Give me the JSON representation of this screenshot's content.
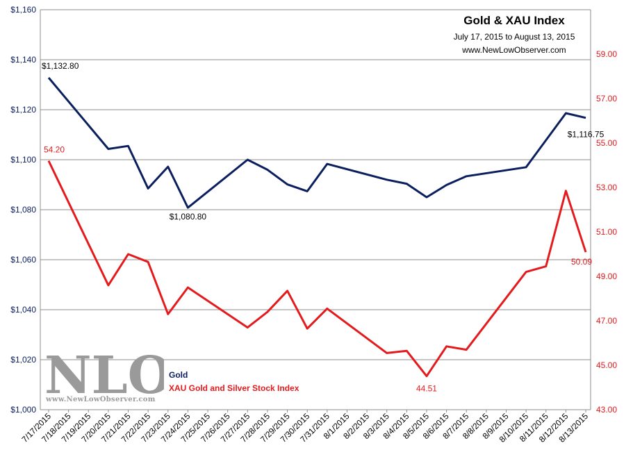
{
  "chart_data": {
    "type": "line",
    "title": "Gold  & XAU Index",
    "subtitle": "July 17, 2015  to August 13, 2015",
    "website": "www.NewLowObserver.com",
    "logo_text": "NLO",
    "logo_url": "www.NewLowObserver.com",
    "categories": [
      "7/17/2015",
      "7/18/2015",
      "7/19/2015",
      "7/20/2015",
      "7/21/2015",
      "7/22/2015",
      "7/23/2015",
      "7/24/2015",
      "7/25/2015",
      "7/26/2015",
      "7/27/2015",
      "7/28/2015",
      "7/29/2015",
      "7/30/2015",
      "7/31/2015",
      "8/1/2015",
      "8/2/2015",
      "8/3/2015",
      "8/4/2015",
      "8/5/2015",
      "8/6/2015",
      "8/7/2015",
      "8/8/2015",
      "8/9/2015",
      "8/10/2015",
      "8/11/2015",
      "8/12/2015",
      "8/13/2015"
    ],
    "left_axis": {
      "ylim": [
        1000,
        1160
      ],
      "ticks": [
        "$1,000",
        "$1,020",
        "$1,040",
        "$1,060",
        "$1,080",
        "$1,100",
        "$1,120",
        "$1,140",
        "$1,160"
      ]
    },
    "right_axis": {
      "ylim": [
        43,
        61
      ],
      "ticks": [
        "43.00",
        "45.00",
        "47.00",
        "49.00",
        "51.00",
        "53.00",
        "55.00",
        "57.00",
        "59.00"
      ]
    },
    "grid": true,
    "series": [
      {
        "name": "Gold",
        "axis": "left",
        "color": "#0b1f5e",
        "points": [
          [
            0,
            1132.8
          ],
          [
            3,
            1104.3
          ],
          [
            4,
            1105.5
          ],
          [
            5,
            1088.5
          ],
          [
            6,
            1097.2
          ],
          [
            7,
            1080.8
          ],
          [
            10,
            1100.0
          ],
          [
            11,
            1096.0
          ],
          [
            12,
            1090.1
          ],
          [
            13,
            1087.4
          ],
          [
            14,
            1098.3
          ],
          [
            17,
            1092.0
          ],
          [
            18,
            1090.4
          ],
          [
            19,
            1085.0
          ],
          [
            20,
            1089.9
          ],
          [
            21,
            1093.4
          ],
          [
            24,
            1097.0
          ],
          [
            26,
            1118.6
          ],
          [
            27,
            1116.75
          ]
        ],
        "labels": [
          {
            "index": 0,
            "text": "$1,132.80"
          },
          {
            "index": 7,
            "text": "$1,080.80"
          },
          {
            "index": 27,
            "text": "$1,116.75"
          }
        ]
      },
      {
        "name": "XAU Gold and Silver Stock Index",
        "axis": "right",
        "color": "#e41a1c",
        "points": [
          [
            0,
            54.2
          ],
          [
            3,
            48.6
          ],
          [
            4,
            50.0
          ],
          [
            5,
            49.65
          ],
          [
            6,
            47.3
          ],
          [
            7,
            48.5
          ],
          [
            10,
            46.7
          ],
          [
            11,
            47.4
          ],
          [
            12,
            48.35
          ],
          [
            13,
            46.65
          ],
          [
            14,
            47.55
          ],
          [
            17,
            45.55
          ],
          [
            18,
            45.65
          ],
          [
            19,
            44.51
          ],
          [
            20,
            45.85
          ],
          [
            21,
            45.7
          ],
          [
            24,
            49.2
          ],
          [
            25,
            49.45
          ],
          [
            26,
            52.85
          ],
          [
            27,
            50.09
          ]
        ],
        "labels": [
          {
            "index": 0,
            "text": "54.20"
          },
          {
            "index": 19,
            "text": "44.51"
          },
          {
            "index": 27,
            "text": "50.09"
          }
        ]
      }
    ]
  }
}
